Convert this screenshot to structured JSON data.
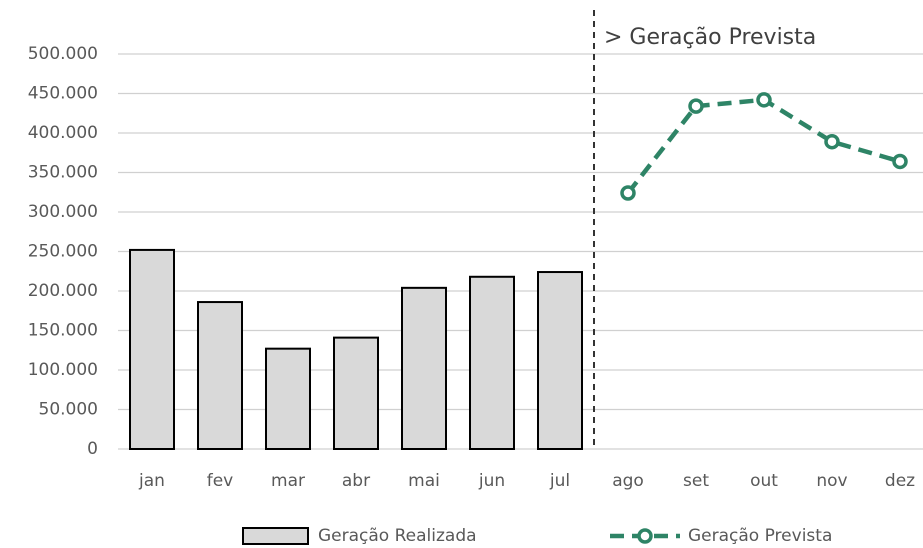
{
  "chart_data": {
    "type": "bar-line",
    "categories": [
      "jan",
      "fev",
      "mar",
      "abr",
      "mai",
      "jun",
      "jul",
      "ago",
      "set",
      "out",
      "nov",
      "dez"
    ],
    "series": [
      {
        "name": "Geração Realizada",
        "type": "bar",
        "color": "#d9d9d9",
        "values": [
          252000,
          186000,
          127000,
          141000,
          204000,
          218000,
          224000,
          null,
          null,
          null,
          null,
          null
        ]
      },
      {
        "name": "Geração Prevista",
        "type": "line",
        "color": "#2e8466",
        "values": [
          null,
          null,
          null,
          null,
          null,
          null,
          null,
          324000,
          434000,
          442000,
          389000,
          364000
        ]
      }
    ],
    "annotation": "> Geração Prevista",
    "ylim": [
      0,
      500000
    ],
    "yticks": [
      0,
      {
        "value": 50000,
        "label": "50.000"
      },
      {
        "value": 100000,
        "label": "100.000"
      },
      {
        "value": 150000,
        "label": "150.000"
      },
      {
        "value": 200000,
        "label": "200.000"
      },
      {
        "value": 250000,
        "label": "250.000"
      },
      {
        "value": 300000,
        "label": "300.000"
      },
      {
        "value": 350000,
        "label": "350.000"
      },
      {
        "value": 400000,
        "label": "400.000"
      },
      {
        "value": 450000,
        "label": "450.000"
      },
      {
        "value": 500000,
        "label": "500.000"
      }
    ],
    "grid": true,
    "legend": "bottom"
  }
}
